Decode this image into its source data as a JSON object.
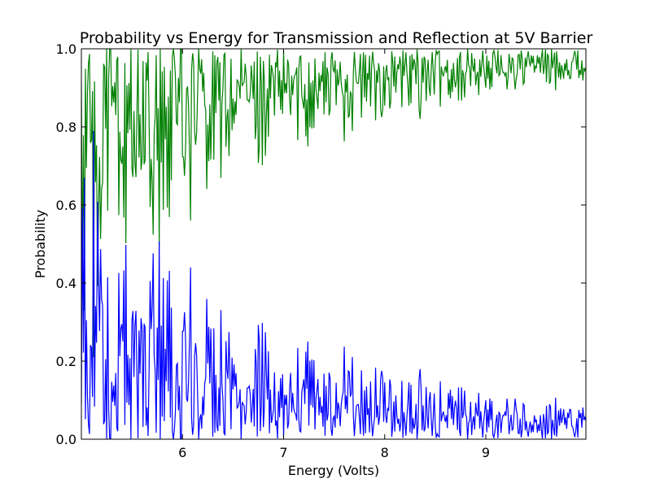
{
  "chart_data": {
    "type": "line",
    "title": "Probability vs Energy for Transmission and Reflection at 5V Barrier",
    "xlabel": "Energy (Volts)",
    "ylabel": "Probability",
    "xlim": [
      5.0,
      9.99
    ],
    "ylim": [
      0.0,
      1.0
    ],
    "xticks": [
      6,
      7,
      8,
      9
    ],
    "xtick_labels": [
      "6",
      "7",
      "8",
      "9"
    ],
    "yticks": [
      0.0,
      0.2,
      0.4,
      0.6,
      0.8,
      1.0
    ],
    "ytick_labels": [
      "0.0",
      "0.2",
      "0.4",
      "0.6",
      "0.8",
      "1.0"
    ],
    "grid": false,
    "legend": "none",
    "x_step": 0.01,
    "series": [
      {
        "color": "#008000",
        "envelope": [
          [
            5.0,
            0.0
          ],
          [
            5.2,
            0.08
          ],
          [
            5.4,
            0.2
          ],
          [
            5.6,
            0.3
          ],
          [
            5.8,
            0.43
          ],
          [
            6.0,
            0.5
          ],
          [
            6.3,
            0.58
          ],
          [
            6.6,
            0.63
          ],
          [
            7.0,
            0.69
          ],
          [
            7.5,
            0.74
          ],
          [
            8.0,
            0.79
          ],
          [
            8.5,
            0.83
          ],
          [
            9.0,
            0.86
          ],
          [
            9.5,
            0.88
          ],
          [
            9.99,
            0.9
          ]
        ]
      },
      {
        "color": "#0000ff",
        "envelope": [
          [
            5.0,
            0.95
          ],
          [
            5.2,
            0.85
          ],
          [
            5.4,
            0.74
          ],
          [
            5.6,
            0.63
          ],
          [
            5.8,
            0.56
          ],
          [
            6.0,
            0.48
          ],
          [
            6.3,
            0.4
          ],
          [
            6.6,
            0.34
          ],
          [
            7.0,
            0.3
          ],
          [
            7.5,
            0.25
          ],
          [
            8.0,
            0.21
          ],
          [
            8.5,
            0.17
          ],
          [
            9.0,
            0.14
          ],
          [
            9.5,
            0.12
          ],
          [
            9.99,
            0.1
          ]
        ]
      }
    ]
  }
}
